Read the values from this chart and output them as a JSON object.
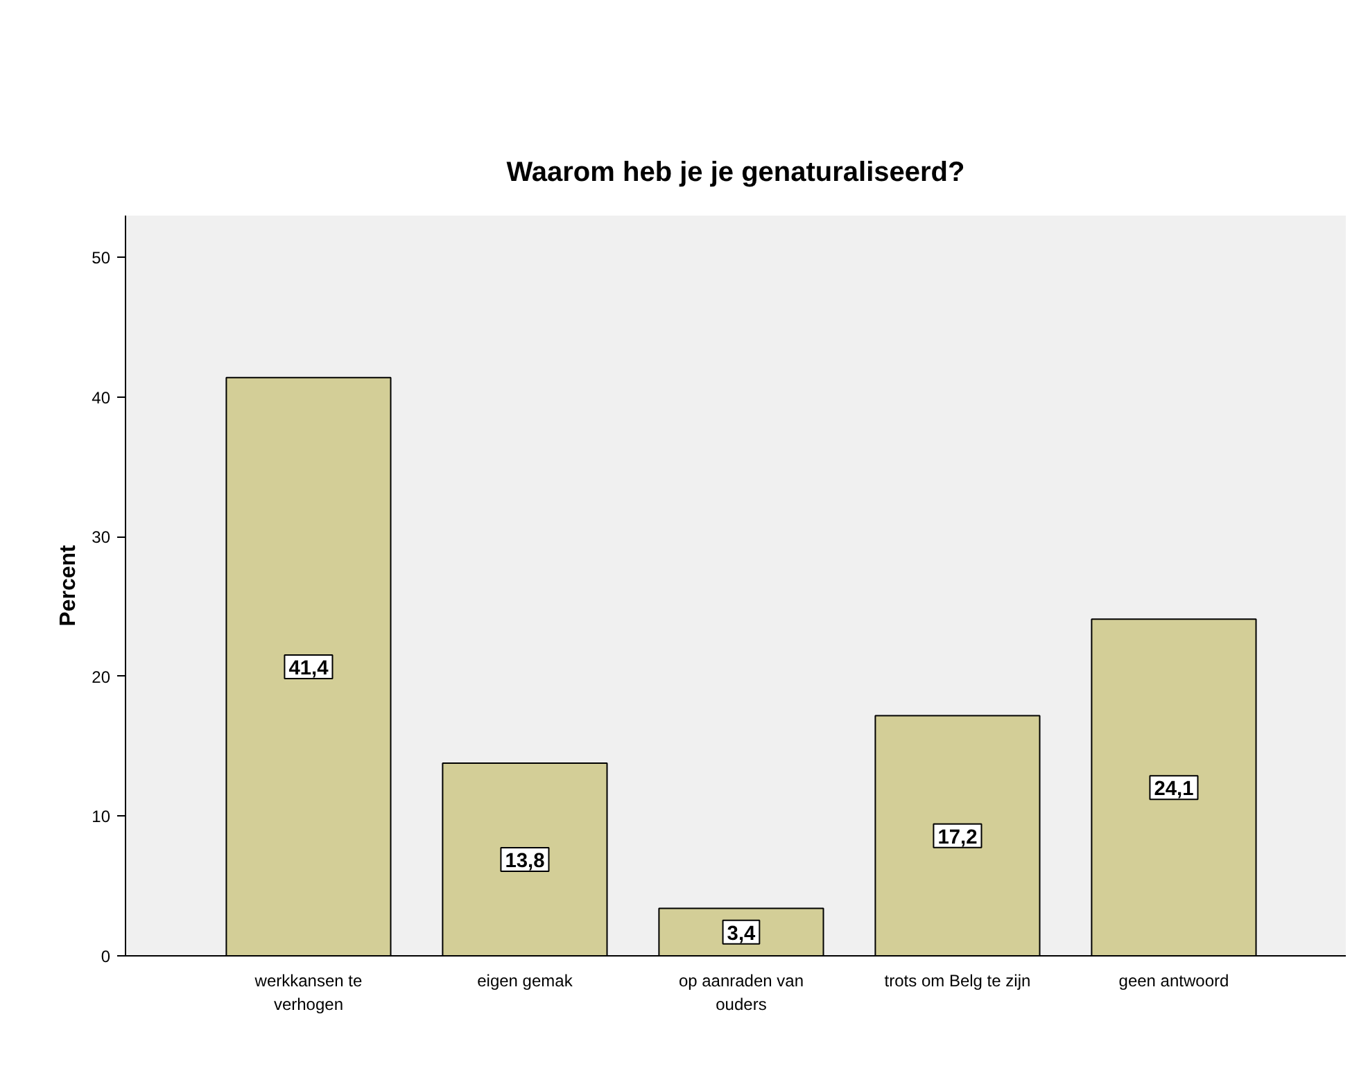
{
  "chart_data": {
    "type": "bar",
    "title": "Waarom heb je je genaturaliseerd?",
    "ylabel": "Percent",
    "categories": [
      "werkkansen te\nverhogen",
      "eigen gemak",
      "op aanraden van\nouders",
      "trots om Belg te zijn",
      "geen antwoord"
    ],
    "values": [
      41.4,
      13.8,
      3.4,
      17.2,
      24.1
    ],
    "value_labels": [
      "41,4",
      "13,8",
      "3,4",
      "17,2",
      "24,1"
    ],
    "color": "#d3ce97",
    "ylim": [
      0,
      53
    ],
    "yticks": [
      0,
      10,
      20,
      30,
      40,
      50
    ]
  }
}
